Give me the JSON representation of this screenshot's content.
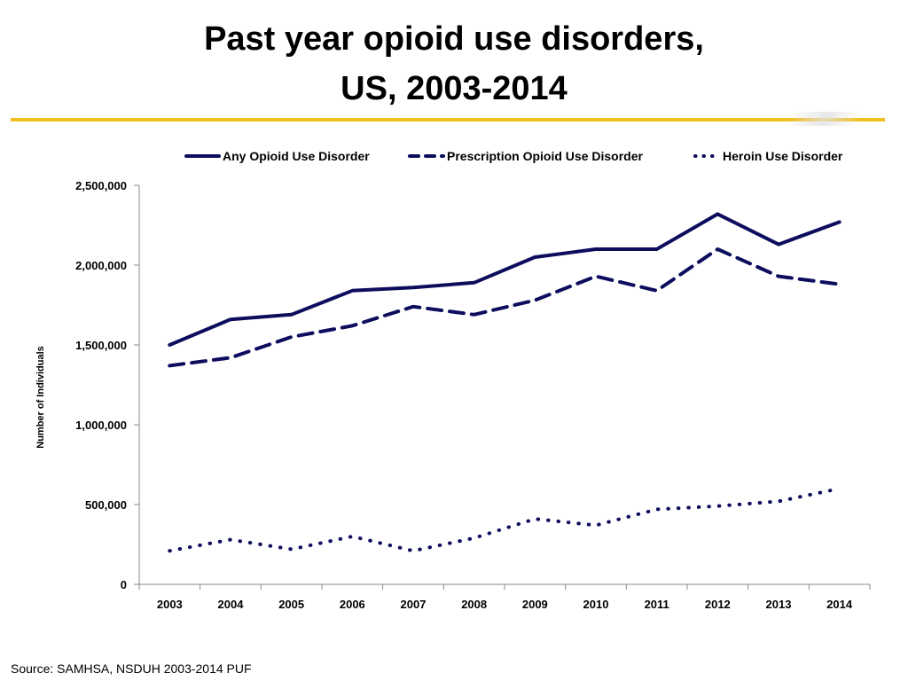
{
  "slide": {
    "title_line1": "Past year opioid use disorders,",
    "title_line2": "US, 2003-2014",
    "source": "Source: SAMHSA, NSDUH 2003-2014 PUF",
    "accent_color": "#f0c020"
  },
  "chart_data": {
    "type": "line",
    "title": "",
    "xlabel": "",
    "ylabel": "Number of Individuals",
    "ylim": [
      0,
      2500000
    ],
    "yticks": [
      0,
      500000,
      1000000,
      1500000,
      2000000,
      2500000
    ],
    "ytick_labels": [
      "0",
      "500,000",
      "1,000,000",
      "1,500,000",
      "2,000,000",
      "2,500,000"
    ],
    "categories": [
      "2003",
      "2004",
      "2005",
      "2006",
      "2007",
      "2008",
      "2009",
      "2010",
      "2011",
      "2012",
      "2013",
      "2014"
    ],
    "legend_position": "top",
    "grid": false,
    "series": [
      {
        "name": "Any Opioid Use Disorder",
        "style": "solid",
        "color": "#0d0d5e",
        "values": [
          1500000,
          1660000,
          1690000,
          1840000,
          1860000,
          1890000,
          2050000,
          2100000,
          2100000,
          2320000,
          2130000,
          2270000
        ]
      },
      {
        "name": "Prescription Opioid Use Disorder",
        "style": "dashed",
        "color": "#0d0d5e",
        "values": [
          1370000,
          1420000,
          1550000,
          1620000,
          1740000,
          1690000,
          1780000,
          1930000,
          1840000,
          2100000,
          1930000,
          1880000
        ]
      },
      {
        "name": "Heroin Use Disorder",
        "style": "dotted",
        "color": "#0d0d5e",
        "values": [
          210000,
          280000,
          220000,
          300000,
          210000,
          290000,
          410000,
          370000,
          470000,
          490000,
          520000,
          600000
        ]
      }
    ]
  }
}
